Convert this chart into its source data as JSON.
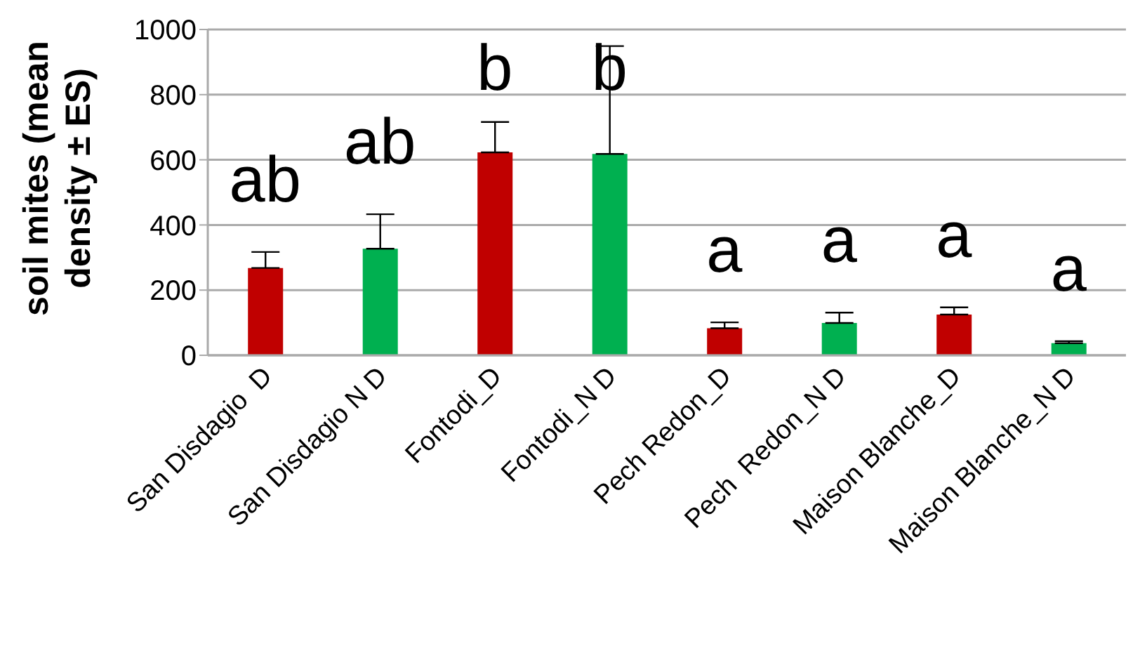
{
  "chart_data": {
    "type": "bar",
    "ylabel": "soil mites (mean density ± ES)",
    "categories": [
      "San Disdagio  D",
      "San Disdagio N D",
      "Fontodi_D",
      "Fontodi_N D",
      "Pech Redon_D",
      "Pech  Redon_N D",
      "Maison Blanche_D",
      "Maison Blanche_N D"
    ],
    "values": [
      268,
      327,
      623,
      618,
      83,
      99,
      125,
      37
    ],
    "errors": [
      49,
      106,
      93,
      331,
      18,
      32,
      22,
      6
    ],
    "colors": [
      "#c00000",
      "#00b050",
      "#c00000",
      "#00b050",
      "#c00000",
      "#00b050",
      "#c00000",
      "#00b050"
    ],
    "ylim": [
      0,
      1000
    ],
    "yticks": [
      0,
      200,
      400,
      600,
      800,
      1000
    ],
    "grid": "y",
    "legend": false,
    "annotations": [
      "ab",
      "ab",
      "b",
      "b",
      "a",
      "a",
      "a",
      "a"
    ]
  }
}
